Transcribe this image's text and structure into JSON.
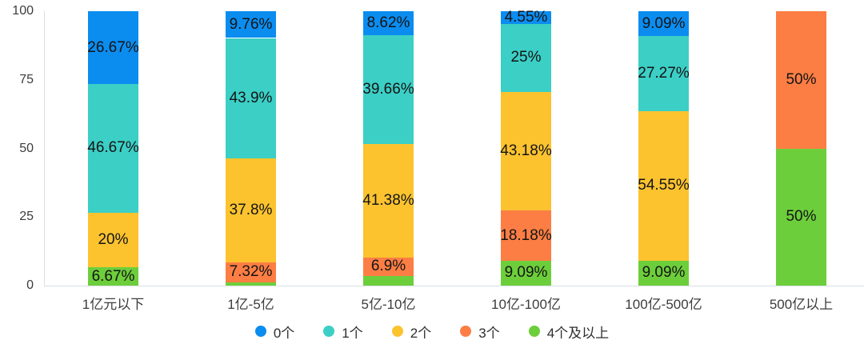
{
  "chart_data": {
    "type": "bar",
    "stacked": true,
    "unit": "%",
    "title": "",
    "xlabel": "",
    "ylabel": "",
    "grid": false,
    "legend_position": "bottom-center",
    "stack_order_note": "series stacked bottom-to-top in reverse legend order (4个及以上 at bottom, 0个 at top)",
    "categories": [
      "1亿元以下",
      "1亿-5亿",
      "5亿-10亿",
      "10亿-100亿",
      "100亿-500亿",
      "500亿以上"
    ],
    "series": [
      {
        "name": "0个",
        "color": "#0B8DF0",
        "values": [
          26.67,
          9.76,
          8.62,
          4.55,
          9.09,
          0
        ],
        "labels": [
          "26.67%",
          "9.76%",
          "8.62%",
          "4.55%",
          "9.09%",
          ""
        ]
      },
      {
        "name": "1个",
        "color": "#3BCFC6",
        "values": [
          46.67,
          43.9,
          39.66,
          25,
          27.27,
          0
        ],
        "labels": [
          "46.67%",
          "43.9%",
          "39.66%",
          "25%",
          "27.27%",
          ""
        ]
      },
      {
        "name": "2个",
        "color": "#FCC32F",
        "values": [
          20,
          37.8,
          41.38,
          43.18,
          54.55,
          0
        ],
        "labels": [
          "20%",
          "37.8%",
          "41.38%",
          "43.18%",
          "54.55%",
          ""
        ]
      },
      {
        "name": "3个",
        "color": "#FC7E44",
        "values": [
          0,
          7.32,
          6.9,
          18.18,
          0,
          50
        ],
        "labels": [
          "",
          "7.32%",
          "6.9%",
          "18.18%",
          "",
          "50%"
        ]
      },
      {
        "name": "4个及以上",
        "color": "#6DCE3B",
        "values": [
          6.67,
          1.22,
          3.44,
          9.09,
          9.09,
          50
        ],
        "labels": [
          "6.67%",
          "",
          "",
          "9.09%",
          "9.09%",
          "50%"
        ]
      }
    ],
    "y_axis": {
      "min": 0,
      "max": 100,
      "ticks": [
        0,
        25,
        50,
        75,
        100
      ]
    },
    "colors": {
      "axis_line": "#d9dfe6",
      "tick_text": "#3c3c3c",
      "data_label_text": "#141414",
      "background": "#ffffff"
    }
  }
}
